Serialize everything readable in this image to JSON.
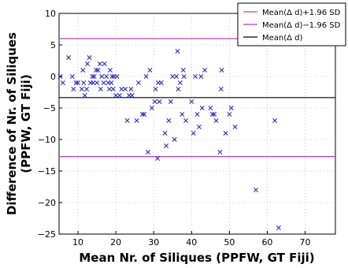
{
  "chart_data": {
    "type": "scatter",
    "xlabel": "Mean Nr. of Siliques (PPFW, GT Fiji)",
    "ylabel_line1": "Difference of Nr. of Siliques",
    "ylabel_line2": "(PPFW, GT Fiji)",
    "xlim": [
      5,
      78
    ],
    "ylim": [
      -25,
      10
    ],
    "xticks": [
      10,
      20,
      30,
      40,
      50,
      60,
      70
    ],
    "yticks": [
      10,
      5,
      0,
      -5,
      -10,
      -15,
      -20,
      -25
    ],
    "grid": true,
    "legend_position": "top-right",
    "legend": [
      {
        "label": "Mean(Δ d)+1.96 SD",
        "color": "#bf3fbf"
      },
      {
        "label": "Mean(Δ d)−1.96 SD",
        "color": "#bf3fbf"
      },
      {
        "label": "Mean(Δ d)",
        "color": "#000000"
      }
    ],
    "hlines": {
      "upper_limit": 6.0,
      "lower_limit": -12.7,
      "mean": -3.35
    },
    "marker_color": "#2b2bb8",
    "points": [
      [
        5.3,
        0
      ],
      [
        6,
        -1
      ],
      [
        7.5,
        3
      ],
      [
        8.5,
        0
      ],
      [
        8.8,
        -2
      ],
      [
        9.5,
        -1
      ],
      [
        10,
        -1
      ],
      [
        11,
        -2
      ],
      [
        11.3,
        1
      ],
      [
        11.5,
        -1
      ],
      [
        11.8,
        -3
      ],
      [
        12.3,
        -2
      ],
      [
        12.5,
        2
      ],
      [
        13,
        3
      ],
      [
        13.3,
        -1
      ],
      [
        13.8,
        0
      ],
      [
        14,
        -1
      ],
      [
        14.3,
        0
      ],
      [
        14.8,
        1
      ],
      [
        15,
        -1
      ],
      [
        15.3,
        1
      ],
      [
        15.8,
        2
      ],
      [
        16,
        -2
      ],
      [
        16.3,
        0
      ],
      [
        16.8,
        -1
      ],
      [
        17,
        2
      ],
      [
        17.5,
        0
      ],
      [
        18,
        -1
      ],
      [
        18.3,
        -2
      ],
      [
        18.5,
        1
      ],
      [
        18.8,
        -1
      ],
      [
        19,
        0
      ],
      [
        19.3,
        -2
      ],
      [
        19.5,
        0
      ],
      [
        20,
        -3
      ],
      [
        20.3,
        0
      ],
      [
        21,
        -3
      ],
      [
        21.5,
        -2
      ],
      [
        22.5,
        -2
      ],
      [
        23,
        -7
      ],
      [
        23.5,
        -3
      ],
      [
        24,
        -2
      ],
      [
        24.3,
        -3
      ],
      [
        25.5,
        -7
      ],
      [
        26,
        -1
      ],
      [
        27,
        -6
      ],
      [
        27.5,
        -6
      ],
      [
        28,
        0
      ],
      [
        28.5,
        -12
      ],
      [
        29,
        1
      ],
      [
        29.5,
        -5
      ],
      [
        30.3,
        -4
      ],
      [
        30.5,
        -2
      ],
      [
        31,
        -13
      ],
      [
        31.2,
        -1
      ],
      [
        31.5,
        -4
      ],
      [
        32,
        -1
      ],
      [
        33,
        -9
      ],
      [
        33.3,
        -11
      ],
      [
        34,
        -7
      ],
      [
        34.5,
        -4
      ],
      [
        35,
        0
      ],
      [
        35.5,
        -10
      ],
      [
        36,
        0
      ],
      [
        36.3,
        4
      ],
      [
        36.5,
        -2
      ],
      [
        37,
        -1
      ],
      [
        37.5,
        -6
      ],
      [
        37.8,
        1
      ],
      [
        38,
        0
      ],
      [
        38.5,
        -7
      ],
      [
        40,
        -4
      ],
      [
        40.5,
        -9
      ],
      [
        41,
        0
      ],
      [
        41.5,
        -6
      ],
      [
        42,
        -8
      ],
      [
        42.5,
        0
      ],
      [
        42.8,
        -5
      ],
      [
        43.5,
        1
      ],
      [
        45,
        -5
      ],
      [
        45.5,
        -6
      ],
      [
        46,
        -6
      ],
      [
        46.5,
        -7
      ],
      [
        47.5,
        -12
      ],
      [
        47.8,
        -2
      ],
      [
        48,
        1
      ],
      [
        49,
        -9
      ],
      [
        50,
        -6
      ],
      [
        50.5,
        -5
      ],
      [
        51.5,
        -8
      ],
      [
        57,
        -18
      ],
      [
        62,
        -7
      ],
      [
        63,
        -24
      ]
    ]
  }
}
